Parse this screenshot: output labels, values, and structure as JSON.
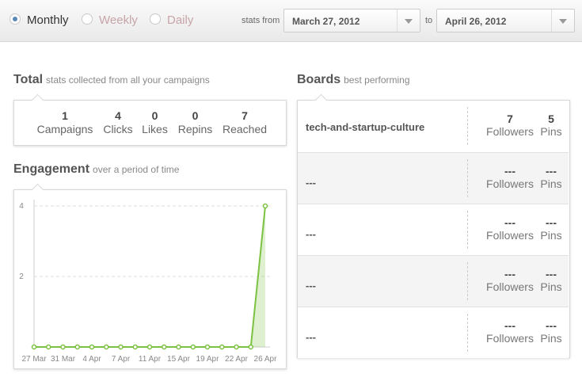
{
  "header": {
    "periods": [
      {
        "label": "Monthly",
        "selected": true
      },
      {
        "label": "Weekly",
        "selected": false
      },
      {
        "label": "Daily",
        "selected": false
      }
    ],
    "from_label": "stats from",
    "from_date": "March 27, 2012",
    "to_label": "to",
    "to_date": "April 26, 2012"
  },
  "total": {
    "title": "Total",
    "subtitle": "stats collected from all your campaigns",
    "stats": [
      {
        "value": 1,
        "label": "Campaigns"
      },
      {
        "value": 4,
        "label": "Clicks"
      },
      {
        "value": 0,
        "label": "Likes"
      },
      {
        "value": 0,
        "label": "Repins"
      },
      {
        "value": 7,
        "label": "Reached"
      }
    ]
  },
  "engagement": {
    "title": "Engagement",
    "subtitle": "over a period of time"
  },
  "boards": {
    "title": "Boards",
    "subtitle": "best performing",
    "rows": [
      {
        "name": "tech-and-startup-culture",
        "followers": "7",
        "followers_label": "Followers",
        "pins": "5",
        "pins_label": "Pins"
      },
      {
        "name": "---",
        "followers": "---",
        "followers_label": "Followers",
        "pins": "---",
        "pins_label": "Pins"
      },
      {
        "name": "---",
        "followers": "---",
        "followers_label": "Followers",
        "pins": "---",
        "pins_label": "Pins"
      },
      {
        "name": "---",
        "followers": "---",
        "followers_label": "Followers",
        "pins": "---",
        "pins_label": "Pins"
      },
      {
        "name": "---",
        "followers": "---",
        "followers_label": "Followers",
        "pins": "---",
        "pins_label": "Pins"
      }
    ]
  },
  "chart_data": {
    "type": "line",
    "categories": [
      "27 Mar",
      null,
      "31 Mar",
      null,
      "4 Apr",
      null,
      "7 Apr",
      null,
      "11 Apr",
      null,
      "15 Apr",
      null,
      "19 Apr",
      null,
      "22 Apr",
      null,
      "26 Apr"
    ],
    "series": [
      {
        "name": null,
        "color": "#7cc242",
        "values": [
          0,
          0,
          0,
          0,
          0,
          0,
          0,
          0,
          0,
          0,
          0,
          0,
          0,
          0,
          0,
          0,
          4
        ]
      }
    ],
    "ylim": [
      0,
      4
    ],
    "yticks": [
      2,
      4
    ],
    "grid": true
  }
}
